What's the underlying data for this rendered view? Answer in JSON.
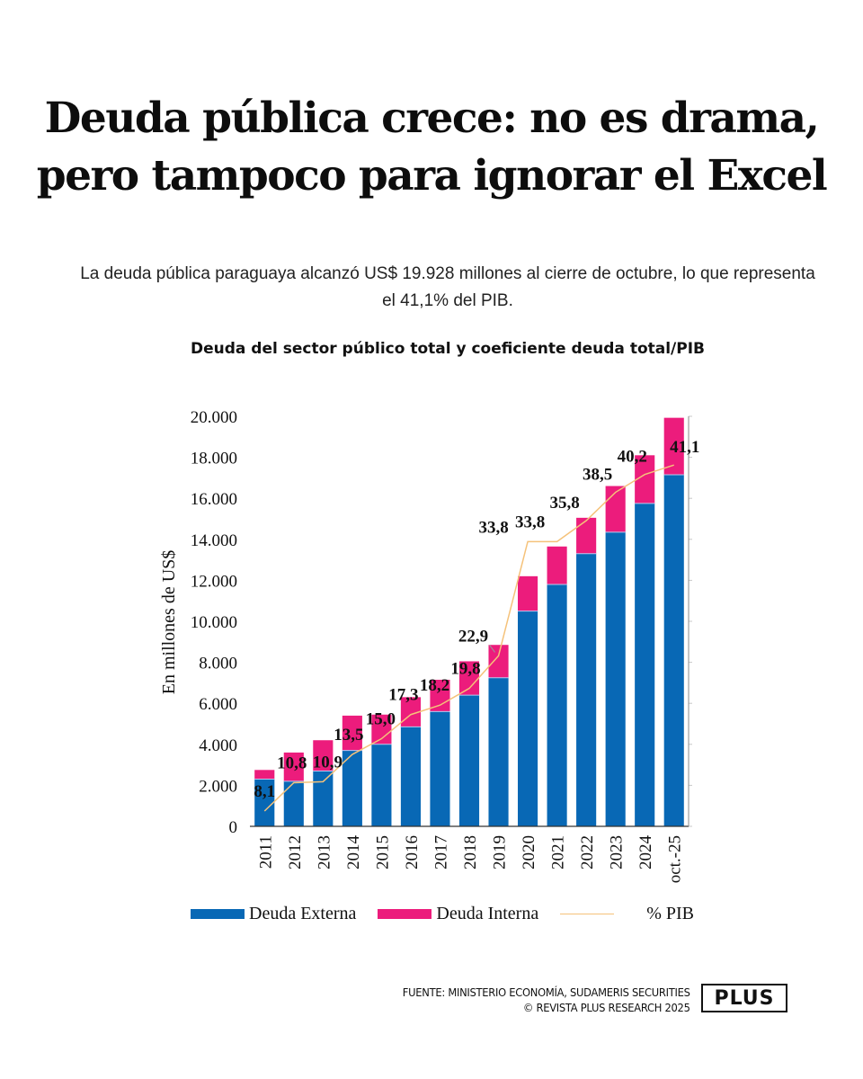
{
  "header": {
    "headline_line1": "Deuda pública crece: no es drama,",
    "headline_line2": "pero tampoco para ignorar el Excel",
    "subtitle": "La deuda pública paraguaya alcanzó US$ 19.928 millones al cierre de octubre, lo que representa el 41,1% del PIB."
  },
  "chart_data": {
    "type": "bar",
    "stacked": true,
    "title": "Deuda del sector público total y coeficiente deuda total/PIB",
    "xlabel": "",
    "ylabel": "En millones de US$",
    "ylim": [
      0,
      20000
    ],
    "yticks": [
      0,
      2000,
      4000,
      6000,
      8000,
      10000,
      12000,
      14000,
      16000,
      18000,
      20000
    ],
    "ytick_labels": [
      "0",
      "2.000",
      "4.000",
      "6.000",
      "8.000",
      "10.000",
      "12.000",
      "14.000",
      "16.000",
      "18.000",
      "20.000"
    ],
    "grid": false,
    "legend_position": "bottom",
    "categories": [
      "2011",
      "2012",
      "2013",
      "2014",
      "2015",
      "2016",
      "2017",
      "2018",
      "2019",
      "2020",
      "2021",
      "2022",
      "2023",
      "2024",
      "oct.-25"
    ],
    "series": [
      {
        "name": "Deuda Externa",
        "color": "#0868b5",
        "values": [
          2300,
          2200,
          2700,
          3700,
          4000,
          4850,
          5600,
          6400,
          7250,
          10500,
          11800,
          13300,
          14350,
          15750,
          17150
        ]
      },
      {
        "name": "Deuda Interna",
        "color": "#ec1c7c",
        "values": [
          450,
          1400,
          1500,
          1700,
          1450,
          1450,
          1550,
          1650,
          1600,
          1700,
          1850,
          1750,
          2250,
          2350,
          2778
        ]
      },
      {
        "name": "% PIB",
        "type": "line",
        "axis": "secondary",
        "color": "#f5c27a",
        "values": [
          8.1,
          10.8,
          10.9,
          13.5,
          15.0,
          17.3,
          18.2,
          19.8,
          22.9,
          33.8,
          33.8,
          35.8,
          38.5,
          40.2,
          41.1
        ],
        "labels": [
          "8,1",
          "10,8",
          "10,9",
          "13,5",
          "15,0",
          "17,3",
          "18,2",
          "19,8",
          "22,9",
          "33,8",
          "33,8",
          "35,8",
          "38,5",
          "40,2",
          "41,1"
        ]
      }
    ]
  },
  "legend": {
    "items": [
      {
        "label": "Deuda Externa",
        "color": "#0868b5"
      },
      {
        "label": "Deuda Interna",
        "color": "#ec1c7c"
      },
      {
        "label": "% PIB",
        "color": "#f5c27a"
      }
    ]
  },
  "footer": {
    "source": "FUENTE: MINISTERIO ECONOMÍA, SUDAMERIS SECURITIES",
    "copyright": "© REVISTA PLUS RESEARCH 2025",
    "logo": "PLUS"
  }
}
